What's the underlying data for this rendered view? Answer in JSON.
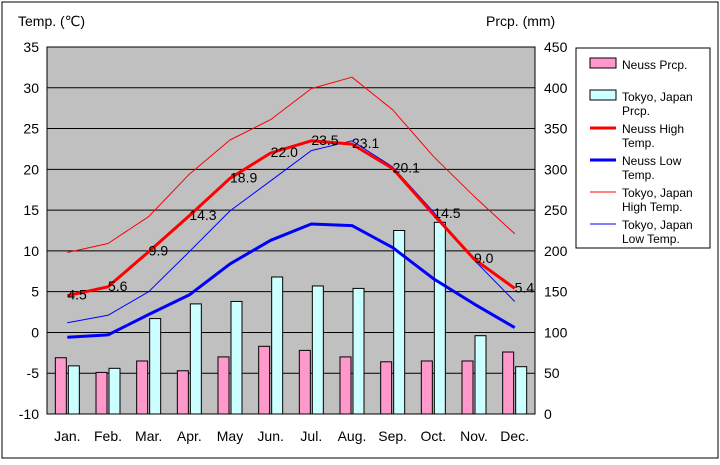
{
  "chart_data": {
    "type": "bar",
    "categories": [
      "Jan.",
      "Feb.",
      "Mar.",
      "Apr.",
      "May",
      "Jun.",
      "Jul.",
      "Aug.",
      "Sep.",
      "Oct.",
      "Nov.",
      "Dec."
    ],
    "left_axis": {
      "title": "Temp. (℃)",
      "ylim": [
        -10,
        35
      ],
      "ticks": [
        "35",
        "30",
        "25",
        "20",
        "15",
        "10",
        "5",
        "0",
        "-5",
        "-10"
      ]
    },
    "right_axis": {
      "title": "Prcp. (mm)",
      "ylim": [
        0,
        450
      ],
      "ticks": [
        "450",
        "400",
        "350",
        "300",
        "250",
        "200",
        "150",
        "100",
        "50",
        "0"
      ]
    },
    "grid": true,
    "legend_position": "right",
    "bar_series": [
      {
        "name": "Neuss Prcp.",
        "legend": [
          "Neuss Prcp."
        ],
        "axis": "right",
        "color": "#ff99cc",
        "values": [
          69,
          51,
          65,
          53,
          70,
          83,
          78,
          70,
          64,
          65,
          65,
          76
        ]
      },
      {
        "name": "Tokyo, Japan Prcp.",
        "legend": [
          "Tokyo, Japan",
          "Prcp."
        ],
        "axis": "right",
        "color": "#ccffff",
        "values": [
          59,
          56,
          117,
          135,
          138,
          168,
          157,
          154,
          225,
          235,
          96,
          58
        ]
      }
    ],
    "line_series": [
      {
        "name": "Neuss High Temp.",
        "legend": [
          "Neuss High",
          "Temp."
        ],
        "axis": "left",
        "color": "#ff0000",
        "width": 3,
        "values": [
          4.5,
          5.6,
          9.9,
          14.3,
          18.9,
          22.0,
          23.5,
          23.1,
          20.1,
          14.5,
          9.0,
          5.4
        ],
        "labels": [
          "4.5",
          "5.6",
          "9.9",
          "14.3",
          "18.9",
          "22.0",
          "23.5",
          "23.1",
          "20.1",
          "14.5",
          "9.0",
          "5.4"
        ]
      },
      {
        "name": "Neuss Low Temp.",
        "legend": [
          "Neuss Low",
          "Temp."
        ],
        "axis": "left",
        "color": "#0000ff",
        "width": 3,
        "values": [
          -0.6,
          -0.3,
          2.2,
          4.6,
          8.4,
          11.3,
          13.3,
          13.1,
          10.4,
          6.6,
          3.5,
          0.6
        ]
      },
      {
        "name": "Tokyo, Japan High Temp.",
        "legend": [
          "Tokyo, Japan",
          "High Temp."
        ],
        "axis": "left",
        "color": "#ff0000",
        "width": 1,
        "values": [
          9.8,
          10.9,
          14.2,
          19.4,
          23.6,
          26.1,
          29.9,
          31.3,
          27.3,
          21.6,
          16.7,
          12.1
        ]
      },
      {
        "name": "Tokyo, Japan Low Temp.",
        "legend": [
          "Tokyo, Japan",
          "Low Temp."
        ],
        "axis": "left",
        "color": "#0000ff",
        "width": 1,
        "values": [
          1.2,
          2.1,
          5.0,
          9.9,
          14.9,
          18.6,
          22.3,
          23.5,
          20.3,
          14.8,
          8.9,
          3.8
        ]
      }
    ]
  }
}
